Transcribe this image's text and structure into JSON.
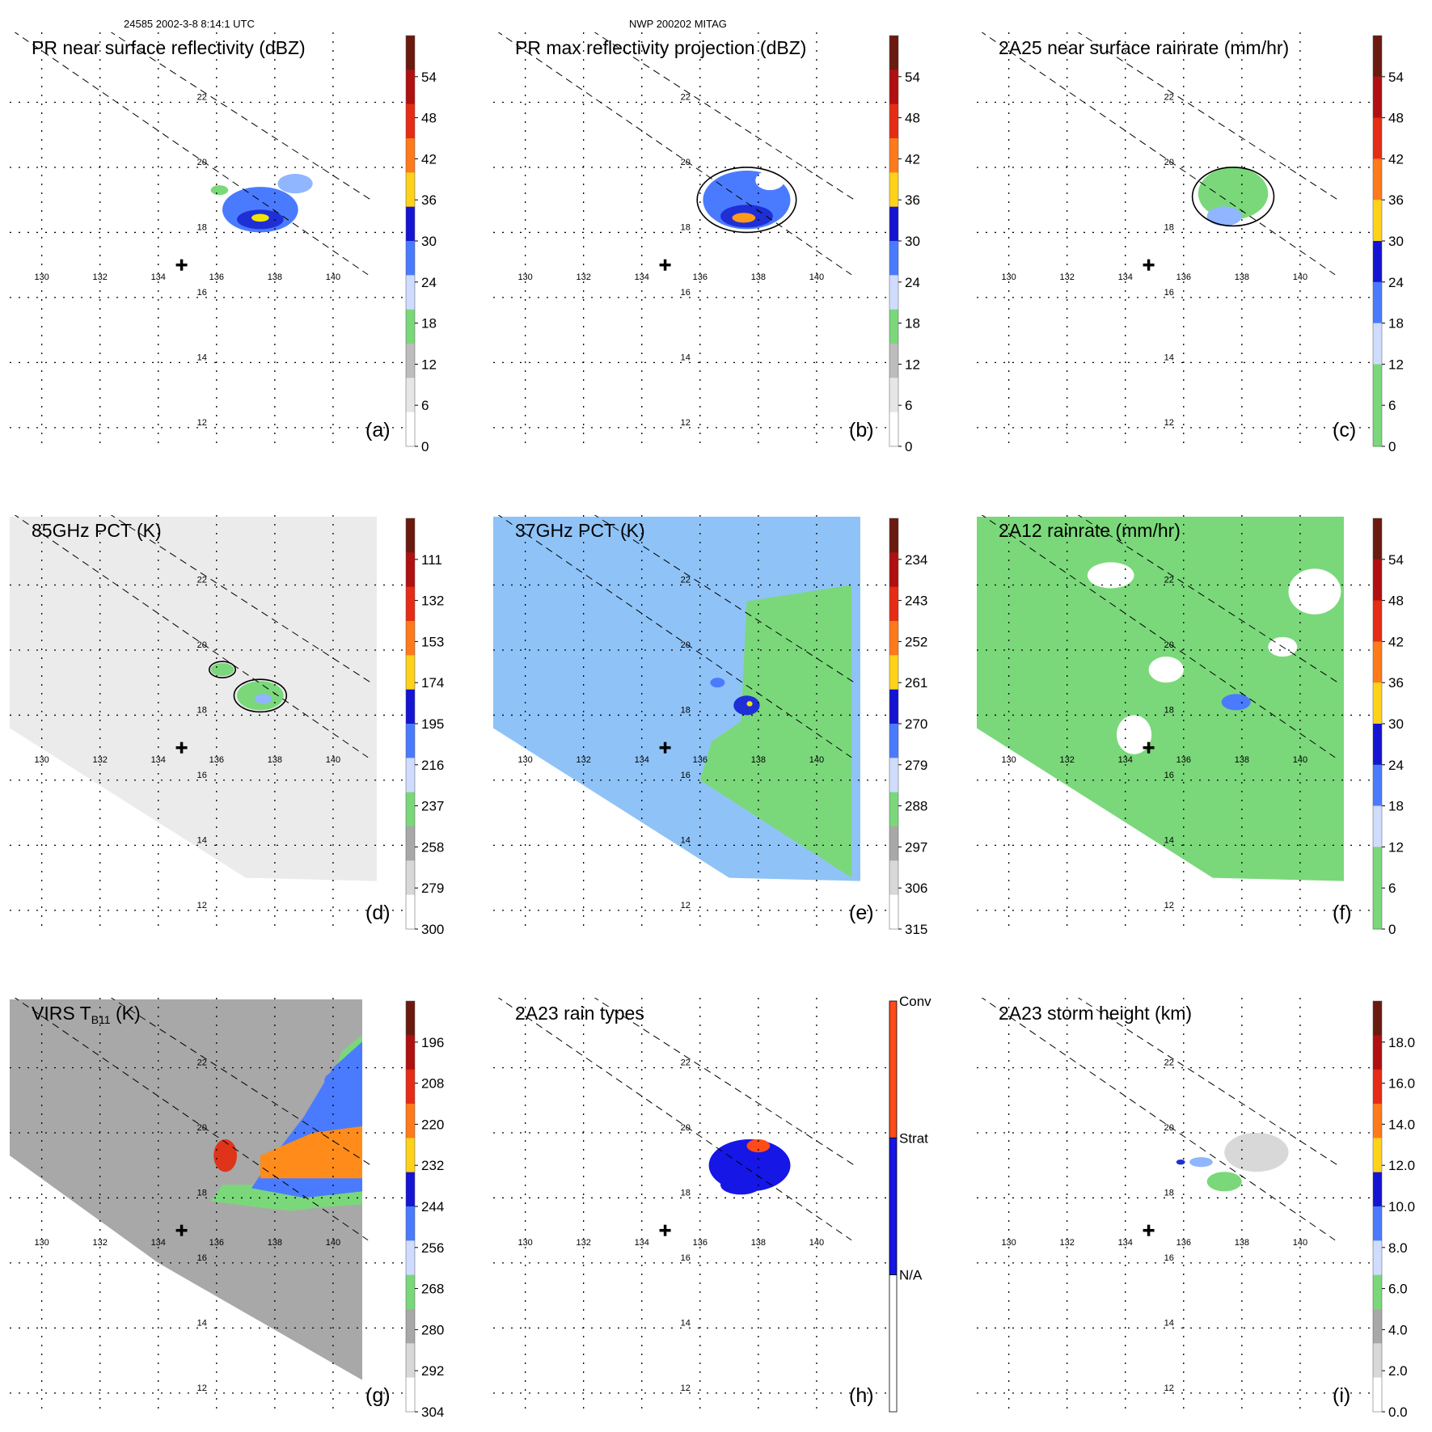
{
  "header": {
    "left": "24585 2002-3-8 8:14:1 UTC",
    "center": "NWP 200202 MITAG"
  },
  "map": {
    "lon_ticks": [
      "130",
      "132",
      "134",
      "136",
      "138",
      "140"
    ],
    "lat_ticks": [
      "22",
      "20",
      "18",
      "16",
      "14",
      "12"
    ]
  },
  "chart_data": [
    {
      "type": "heatmap",
      "id": "a",
      "panel_label": "(a)",
      "title": "PR near surface reflectivity (dBZ)",
      "swath": "PR",
      "colorbar": {
        "labels": [
          "54",
          "48",
          "42",
          "36",
          "30",
          "24",
          "18",
          "12",
          "6",
          "0"
        ],
        "scheme": "dbz"
      },
      "features": [
        {
          "kind": "blob",
          "lon": 137.5,
          "lat": 18.7,
          "rlon": 1.3,
          "rlat": 0.7,
          "color": "#4a7bff"
        },
        {
          "kind": "blob",
          "lon": 137.5,
          "lat": 18.4,
          "rlon": 0.8,
          "rlat": 0.3,
          "color": "#1f2fd6"
        },
        {
          "kind": "blob",
          "lon": 137.5,
          "lat": 18.45,
          "rlon": 0.3,
          "rlat": 0.12,
          "color": "#f2e600"
        },
        {
          "kind": "blob",
          "lon": 138.7,
          "lat": 19.5,
          "rlon": 0.6,
          "rlat": 0.3,
          "color": "#8fb6ff"
        },
        {
          "kind": "blob",
          "lon": 136.1,
          "lat": 19.3,
          "rlon": 0.3,
          "rlat": 0.15,
          "color": "#7ad87a"
        }
      ]
    },
    {
      "type": "heatmap",
      "id": "b",
      "panel_label": "(b)",
      "title": "PR max reflectivity projection (dBZ)",
      "swath": "PR",
      "colorbar": {
        "labels": [
          "54",
          "48",
          "42",
          "36",
          "30",
          "24",
          "18",
          "12",
          "6",
          "0"
        ],
        "scheme": "dbz"
      },
      "features": [
        {
          "kind": "blob",
          "lon": 137.6,
          "lat": 19.0,
          "rlon": 1.5,
          "rlat": 0.9,
          "color": "#4a7bff"
        },
        {
          "kind": "blob",
          "lon": 137.6,
          "lat": 18.5,
          "rlon": 0.9,
          "rlat": 0.35,
          "color": "#1f2fd6"
        },
        {
          "kind": "blob",
          "lon": 137.5,
          "lat": 18.45,
          "rlon": 0.4,
          "rlat": 0.15,
          "color": "#ff9a1a"
        },
        {
          "kind": "blob",
          "lon": 138.4,
          "lat": 19.6,
          "rlon": 0.5,
          "rlat": 0.3,
          "color": "#ffffff"
        },
        {
          "kind": "contour",
          "lon": 137.6,
          "lat": 19.0,
          "rlon": 1.7,
          "rlat": 1.0
        }
      ]
    },
    {
      "type": "heatmap",
      "id": "c",
      "panel_label": "(c)",
      "title": "2A25 near surface rainrate (mm/hr)",
      "swath": "PR",
      "colorbar": {
        "labels": [
          "54",
          "48",
          "42",
          "36",
          "30",
          "24",
          "18",
          "12",
          "6",
          "0"
        ],
        "scheme": "rain"
      },
      "features": [
        {
          "kind": "blob",
          "lon": 137.7,
          "lat": 19.2,
          "rlon": 1.2,
          "rlat": 0.8,
          "color": "#7ad87a"
        },
        {
          "kind": "blob",
          "lon": 137.4,
          "lat": 18.5,
          "rlon": 0.6,
          "rlat": 0.3,
          "color": "#8fb6ff"
        },
        {
          "kind": "contour",
          "lon": 137.7,
          "lat": 19.1,
          "rlon": 1.4,
          "rlat": 0.9
        }
      ]
    },
    {
      "type": "heatmap",
      "id": "d",
      "panel_label": "(d)",
      "title": "85GHz PCT (K)",
      "swath": "TMI",
      "background": "#ebebeb",
      "colorbar": {
        "labels": [
          "111",
          "132",
          "153",
          "174",
          "195",
          "216",
          "237",
          "258",
          "279",
          "300"
        ],
        "scheme": "pct"
      },
      "features": [
        {
          "kind": "blob",
          "lon": 137.5,
          "lat": 18.6,
          "rlon": 0.8,
          "rlat": 0.45,
          "color": "#7ad87a"
        },
        {
          "kind": "blob",
          "lon": 137.6,
          "lat": 18.5,
          "rlon": 0.3,
          "rlat": 0.15,
          "color": "#8fb6ff"
        },
        {
          "kind": "blob",
          "lon": 136.2,
          "lat": 19.4,
          "rlon": 0.4,
          "rlat": 0.2,
          "color": "#7ad87a"
        },
        {
          "kind": "contour",
          "lon": 137.5,
          "lat": 18.6,
          "rlon": 0.9,
          "rlat": 0.5
        },
        {
          "kind": "contour",
          "lon": 136.2,
          "lat": 19.4,
          "rlon": 0.45,
          "rlat": 0.25
        }
      ]
    },
    {
      "type": "heatmap",
      "id": "e",
      "panel_label": "(e)",
      "title": "37GHz PCT (K)",
      "swath": "TMI",
      "background": "#8fc3f7",
      "colorbar": {
        "labels": [
          "234",
          "243",
          "252",
          "261",
          "270",
          "279",
          "288",
          "297",
          "306",
          "315"
        ],
        "scheme": "pct"
      },
      "features": [
        {
          "kind": "region",
          "color": "#7ad87a",
          "poly": [
            [
              137.6,
              21.5
            ],
            [
              141.2,
              22.0
            ],
            [
              141.2,
              13.0
            ],
            [
              136.0,
              16.0
            ],
            [
              136.4,
              17.2
            ],
            [
              137.4,
              17.8
            ]
          ]
        },
        {
          "kind": "blob",
          "lon": 137.6,
          "lat": 18.3,
          "rlon": 0.45,
          "rlat": 0.3,
          "color": "#1f2fd6"
        },
        {
          "kind": "blob",
          "lon": 137.7,
          "lat": 18.35,
          "rlon": 0.1,
          "rlat": 0.08,
          "color": "#f2e600"
        },
        {
          "kind": "blob",
          "lon": 136.6,
          "lat": 19.0,
          "rlon": 0.25,
          "rlat": 0.15,
          "color": "#4a7bff"
        }
      ]
    },
    {
      "type": "heatmap",
      "id": "f",
      "panel_label": "(f)",
      "title": "2A12 rainrate (mm/hr)",
      "swath": "TMI",
      "background": "#7ad87a",
      "colorbar": {
        "labels": [
          "54",
          "48",
          "42",
          "36",
          "30",
          "24",
          "18",
          "12",
          "6",
          "0"
        ],
        "scheme": "rain"
      },
      "features": [
        {
          "kind": "blob",
          "lon": 140.5,
          "lat": 21.8,
          "rlon": 0.9,
          "rlat": 0.7,
          "color": "#ffffff"
        },
        {
          "kind": "blob",
          "lon": 139.4,
          "lat": 20.1,
          "rlon": 0.5,
          "rlat": 0.3,
          "color": "#ffffff"
        },
        {
          "kind": "blob",
          "lon": 135.4,
          "lat": 19.4,
          "rlon": 0.6,
          "rlat": 0.4,
          "color": "#ffffff"
        },
        {
          "kind": "blob",
          "lon": 134.3,
          "lat": 17.4,
          "rlon": 0.6,
          "rlat": 0.6,
          "color": "#ffffff"
        },
        {
          "kind": "blob",
          "lon": 137.8,
          "lat": 18.4,
          "rlon": 0.5,
          "rlat": 0.25,
          "color": "#4a7bff"
        },
        {
          "kind": "blob",
          "lon": 133.5,
          "lat": 22.3,
          "rlon": 0.8,
          "rlat": 0.4,
          "color": "#ffffff"
        }
      ]
    },
    {
      "type": "heatmap",
      "id": "g",
      "panel_label": "(g)",
      "title": "VIRS T",
      "title_sub": "B11",
      "title_tail": " (K)",
      "swath": "VIRS",
      "background": "#a8a8a8",
      "colorbar": {
        "labels": [
          "196",
          "208",
          "220",
          "232",
          "244",
          "256",
          "268",
          "280",
          "292",
          "304"
        ],
        "scheme": "virs"
      },
      "features": [
        {
          "kind": "region",
          "color": "#7ad87a",
          "poly": [
            [
              136.2,
              18.4
            ],
            [
              138.0,
              18.4
            ],
            [
              139.5,
              20.6
            ],
            [
              140.3,
              22.5
            ],
            [
              141.0,
              23.0
            ],
            [
              141.0,
              17.8
            ],
            [
              139.5,
              17.7
            ],
            [
              138.5,
              17.6
            ],
            [
              137.5,
              17.7
            ],
            [
              135.8,
              17.9
            ]
          ]
        },
        {
          "kind": "region",
          "color": "#4a7bff",
          "poly": [
            [
              137.8,
              19.1
            ],
            [
              139.0,
              20.5
            ],
            [
              140.0,
              22.0
            ],
            [
              141.0,
              22.8
            ],
            [
              141.0,
              18.2
            ],
            [
              139.0,
              18.0
            ],
            [
              137.2,
              18.3
            ]
          ]
        },
        {
          "kind": "region",
          "color": "#ff8c1a",
          "poly": [
            [
              137.5,
              19.3
            ],
            [
              139.3,
              20.0
            ],
            [
              141.0,
              20.2
            ],
            [
              141.0,
              18.6
            ],
            [
              139.5,
              18.6
            ],
            [
              137.5,
              18.6
            ]
          ]
        },
        {
          "kind": "blob",
          "lon": 136.3,
          "lat": 19.3,
          "rlon": 0.4,
          "rlat": 0.5,
          "color": "#e0341a"
        },
        {
          "kind": "blob",
          "lon": 140.2,
          "lat": 21.6,
          "rlon": 0.5,
          "rlat": 0.3,
          "color": "#4a7bff"
        }
      ]
    },
    {
      "type": "heatmap",
      "id": "h",
      "panel_label": "(h)",
      "title": "2A23 rain types",
      "swath": "PR",
      "colorbar": {
        "labels": [
          "Conv",
          "Strat",
          "N/A"
        ],
        "scheme": "raintype"
      },
      "features": [
        {
          "kind": "blob",
          "lon": 137.7,
          "lat": 19.0,
          "rlon": 1.4,
          "rlat": 0.8,
          "color": "#1616e6"
        },
        {
          "kind": "blob",
          "lon": 137.4,
          "lat": 18.4,
          "rlon": 0.7,
          "rlat": 0.3,
          "color": "#1616e6"
        },
        {
          "kind": "blob",
          "lon": 138.0,
          "lat": 19.6,
          "rlon": 0.4,
          "rlat": 0.2,
          "color": "#ff4a1a"
        }
      ]
    },
    {
      "type": "heatmap",
      "id": "i",
      "panel_label": "(i)",
      "title": "2A23 storm height (km)",
      "swath": "PR",
      "colorbar": {
        "labels": [
          "18.0",
          "16.0",
          "14.0",
          "12.0",
          "10.0",
          "8.0",
          "6.0",
          "4.0",
          "2.0",
          "0.0"
        ],
        "scheme": "height"
      },
      "features": [
        {
          "kind": "blob",
          "lon": 138.5,
          "lat": 19.4,
          "rlon": 1.1,
          "rlat": 0.6,
          "color": "#d8d8d8"
        },
        {
          "kind": "blob",
          "lon": 137.4,
          "lat": 18.5,
          "rlon": 0.6,
          "rlat": 0.3,
          "color": "#7ad87a"
        },
        {
          "kind": "blob",
          "lon": 136.6,
          "lat": 19.1,
          "rlon": 0.4,
          "rlat": 0.15,
          "color": "#8fb6ff"
        },
        {
          "kind": "blob",
          "lon": 135.9,
          "lat": 19.1,
          "rlon": 0.15,
          "rlat": 0.08,
          "color": "#1f2fd6"
        }
      ]
    }
  ]
}
